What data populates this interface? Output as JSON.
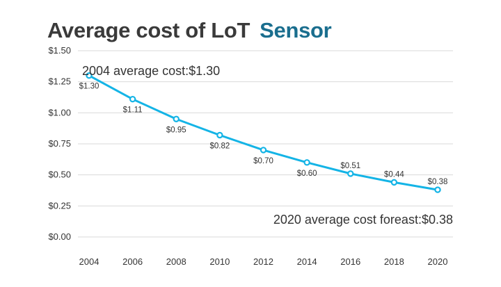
{
  "chart_data": {
    "type": "line",
    "title": "Average cost of LoT",
    "subtitle": "Sensor",
    "xlabel": "",
    "ylabel": "",
    "x_ticks": [
      "2004",
      "2006",
      "2008",
      "2010",
      "2012",
      "2014",
      "2016",
      "2018",
      "2020"
    ],
    "y_ticks": [
      "$0.00",
      "$0.25",
      "$0.50",
      "$0.75",
      "$1.00",
      "$1.25",
      "$1.50"
    ],
    "ylim": [
      0,
      1.5
    ],
    "xlim": [
      2004,
      2020
    ],
    "grid": true,
    "series": [
      {
        "x": [
          2004,
          2006,
          2008,
          2010,
          2012,
          2014,
          2016,
          2018,
          2020
        ],
        "values": [
          1.3,
          1.11,
          0.95,
          0.82,
          0.7,
          0.6,
          0.51,
          0.44,
          0.38
        ],
        "labels": [
          "$1.30",
          "$1.11",
          "$0.95",
          "$0.82",
          "$0.70",
          "$0.60",
          "$0.51",
          "$0.44",
          "$0.38"
        ],
        "color": "#14b4e6"
      }
    ],
    "annotations": [
      "2004 average cost:$1.30",
      "2020 average cost foreast:$0.38"
    ]
  }
}
